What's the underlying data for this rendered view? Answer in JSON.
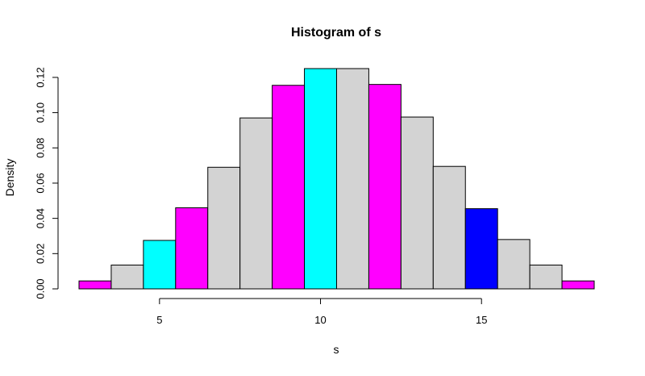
{
  "chart_data": {
    "type": "bar",
    "title": "Histogram of s",
    "xlabel": "s",
    "ylabel": "Density",
    "xlim": [
      2.5,
      18.5
    ],
    "ylim": [
      0,
      0.125
    ],
    "x_ticks": [
      5,
      10,
      15
    ],
    "y_ticks": [
      0.0,
      0.02,
      0.04,
      0.06,
      0.08,
      0.1,
      0.12
    ],
    "y_tick_labels": [
      "0.00",
      "0.02",
      "0.04",
      "0.06",
      "0.08",
      "0.10",
      "0.12"
    ],
    "x_tick_labels": [
      "5",
      "10",
      "15"
    ],
    "grid": false,
    "bins": [
      {
        "from": 2.5,
        "to": 3.5,
        "density": 0.0045,
        "color": "#FF00FF"
      },
      {
        "from": 3.5,
        "to": 4.5,
        "density": 0.0135,
        "color": "#D3D3D3"
      },
      {
        "from": 4.5,
        "to": 5.5,
        "density": 0.0275,
        "color": "#00FFFF"
      },
      {
        "from": 5.5,
        "to": 6.5,
        "density": 0.046,
        "color": "#FF00FF"
      },
      {
        "from": 6.5,
        "to": 7.5,
        "density": 0.069,
        "color": "#D3D3D3"
      },
      {
        "from": 7.5,
        "to": 8.5,
        "density": 0.097,
        "color": "#D3D3D3"
      },
      {
        "from": 8.5,
        "to": 9.5,
        "density": 0.1155,
        "color": "#FF00FF"
      },
      {
        "from": 9.5,
        "to": 10.5,
        "density": 0.125,
        "color": "#00FFFF"
      },
      {
        "from": 10.5,
        "to": 11.5,
        "density": 0.125,
        "color": "#D3D3D3"
      },
      {
        "from": 11.5,
        "to": 12.5,
        "density": 0.116,
        "color": "#FF00FF"
      },
      {
        "from": 12.5,
        "to": 13.5,
        "density": 0.0975,
        "color": "#D3D3D3"
      },
      {
        "from": 13.5,
        "to": 14.5,
        "density": 0.0695,
        "color": "#D3D3D3"
      },
      {
        "from": 14.5,
        "to": 15.5,
        "density": 0.0455,
        "color": "#0000FF"
      },
      {
        "from": 15.5,
        "to": 16.5,
        "density": 0.028,
        "color": "#D3D3D3"
      },
      {
        "from": 16.5,
        "to": 17.5,
        "density": 0.0135,
        "color": "#D3D3D3"
      },
      {
        "from": 17.5,
        "to": 18.5,
        "density": 0.0045,
        "color": "#FF00FF"
      }
    ]
  }
}
